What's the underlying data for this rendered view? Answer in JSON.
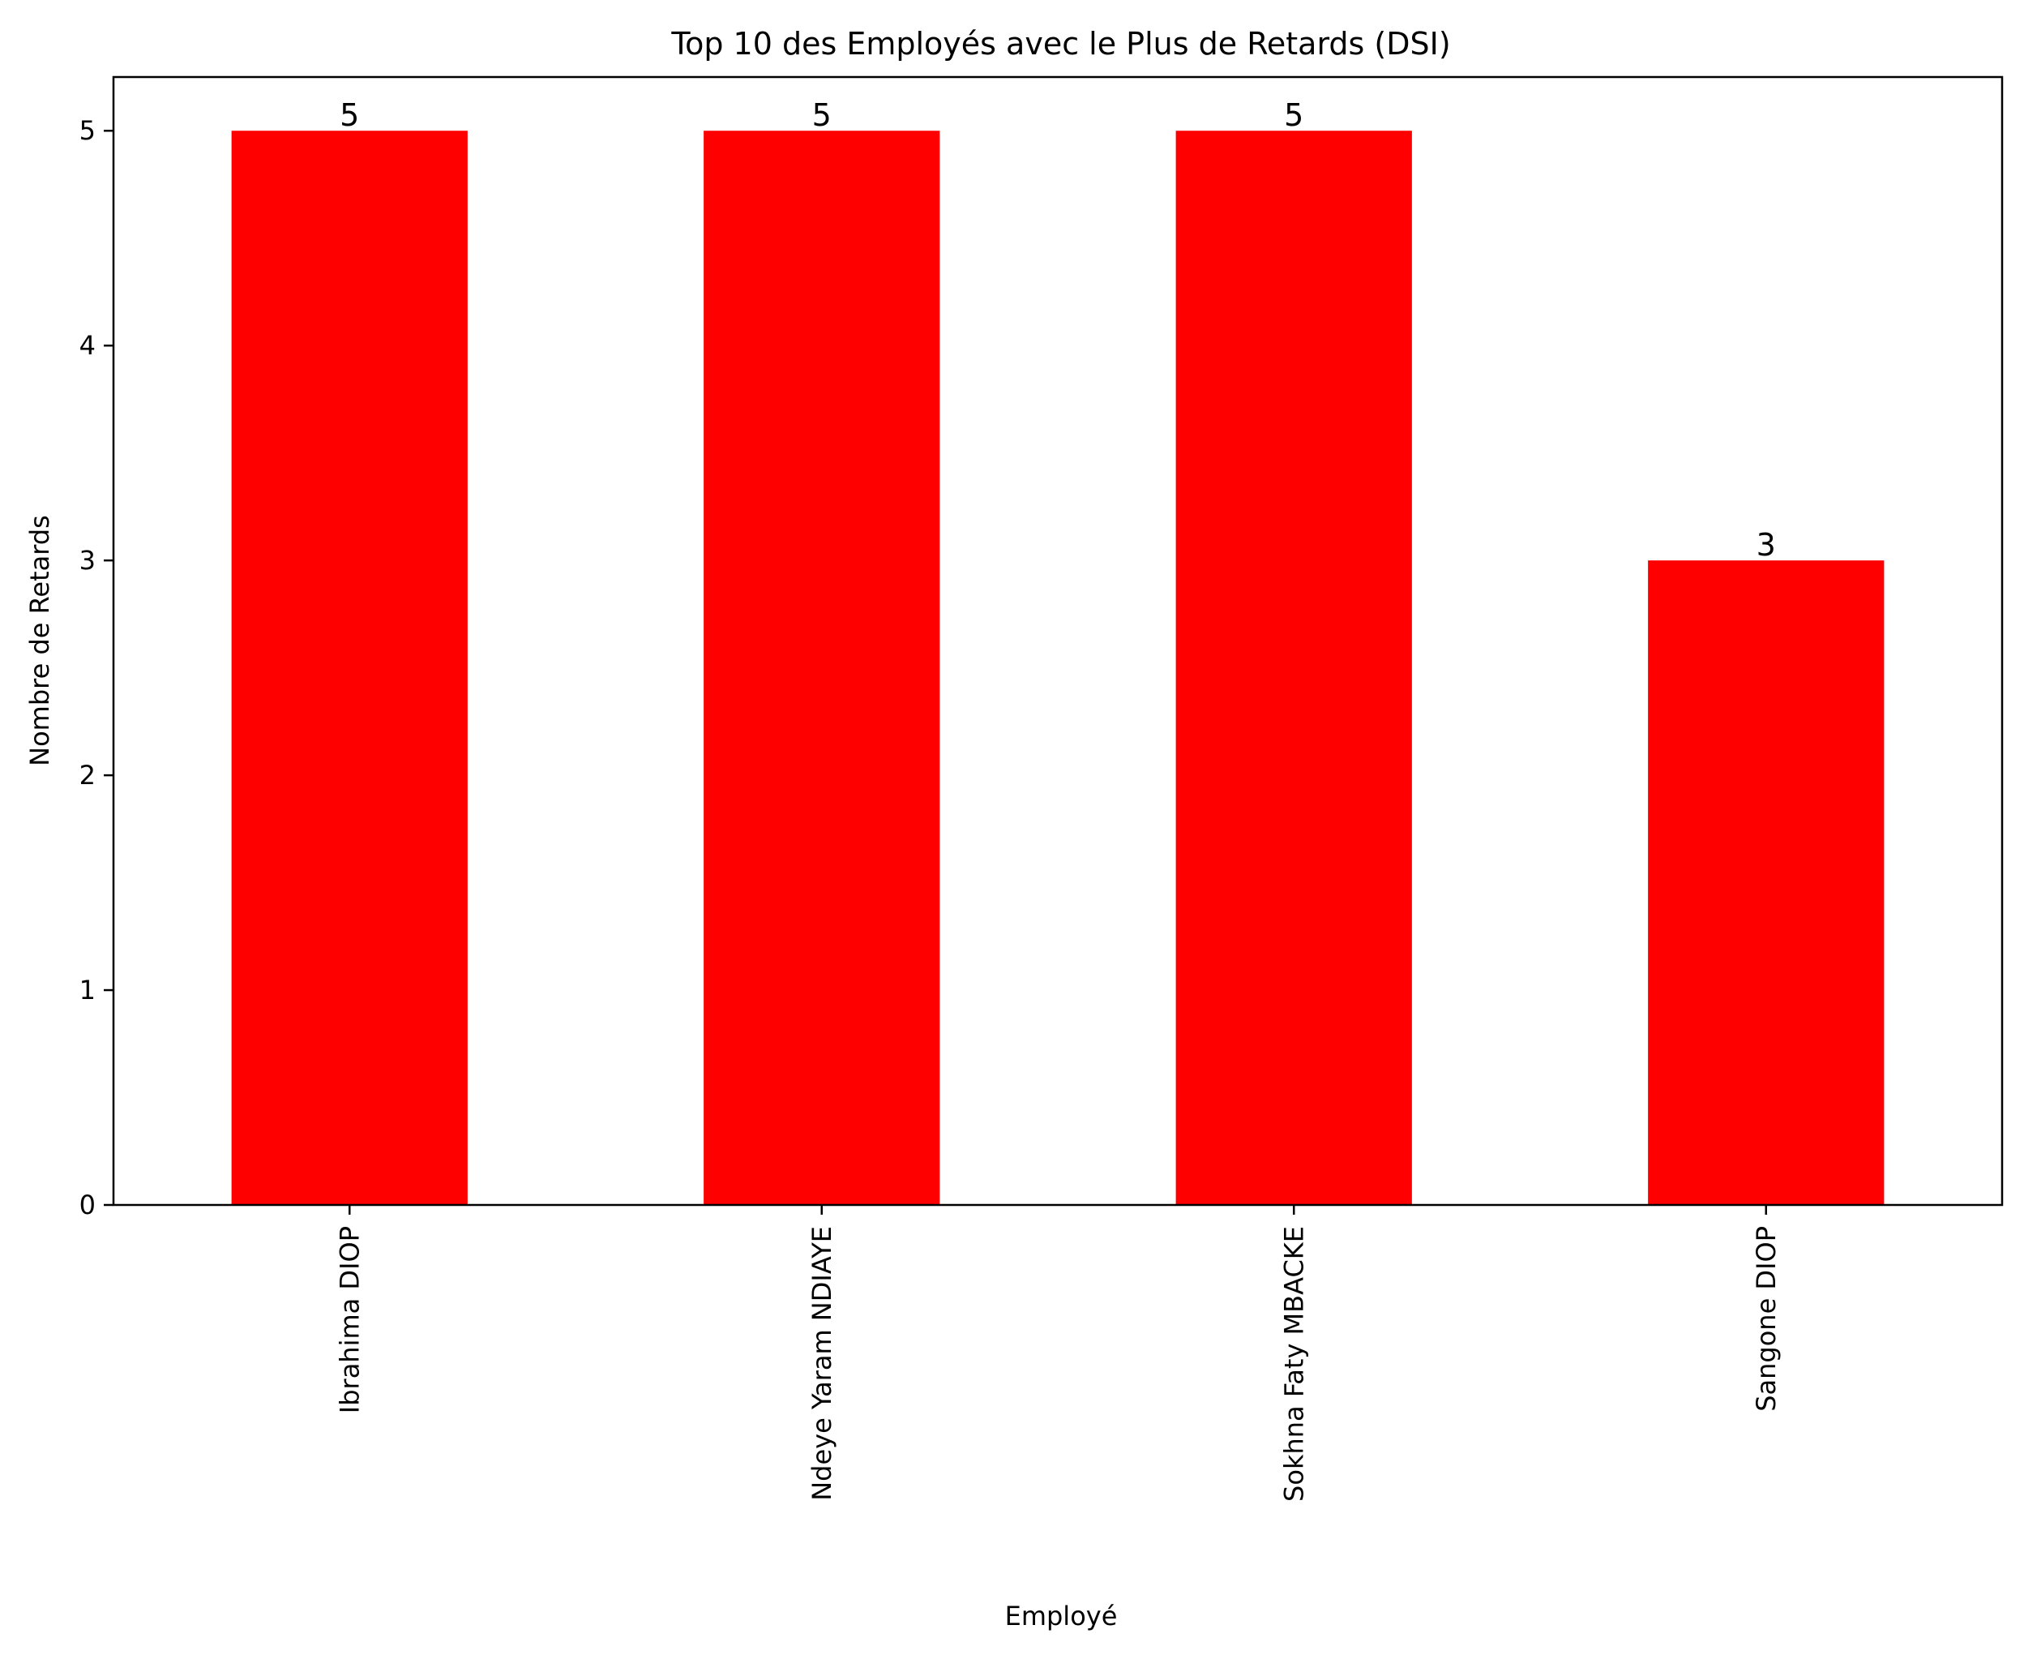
{
  "chart_data": {
    "type": "bar",
    "title": "Top 10 des Employés avec le Plus de Retards (DSI)",
    "xlabel": "Employé",
    "ylabel": "Nombre de Retards",
    "categories": [
      "Ibrahima DIOP",
      "Ndeye Yaram NDIAYE",
      "Sokhna Faty MBACKE",
      "Sangone DIOP"
    ],
    "values": [
      5,
      5,
      5,
      3
    ],
    "data_labels": [
      "5",
      "5",
      "5",
      "3"
    ],
    "yticks": [
      0,
      1,
      2,
      3,
      4,
      5
    ],
    "ytick_labels": [
      "0",
      "1",
      "2",
      "3",
      "4",
      "5"
    ],
    "ylim": [
      0,
      5.25
    ],
    "bar_color": "#ff0000",
    "grid": false,
    "legend": "none"
  }
}
